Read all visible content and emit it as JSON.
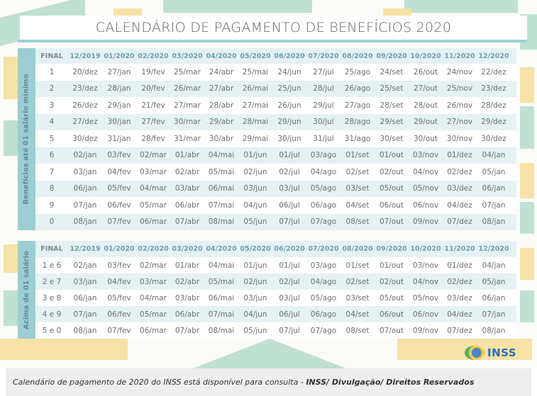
{
  "title": "CALENDÁRIO DE PAGAMENTO DE BENEFÍCIOS 2020",
  "colors": {
    "teal_accent": "#9ccdd4",
    "header_text": "#6aa3ab",
    "row_alt": "#e6f1f3",
    "green_shape": "#bfe0d2",
    "yellow_shape": "#f6e2a6",
    "logo_blue": "#2f6db3"
  },
  "columns": [
    "FINAL",
    "12/2019",
    "01/2020",
    "02/2020",
    "03/2020",
    "04/2020",
    "05/2020",
    "06/2020",
    "07/2020",
    "08/2020",
    "09/2020",
    "10/2020",
    "11/2020",
    "12/2020"
  ],
  "table_minimum": {
    "side_label": "Benefícios até 01 salário mínimo",
    "rows": [
      [
        "1",
        "20/dez",
        "27/jan",
        "19/fev",
        "25/mar",
        "24/abr",
        "25/mai",
        "24/jun",
        "27/jul",
        "25/ago",
        "24/set",
        "26/out",
        "24/nov",
        "22/dez"
      ],
      [
        "2",
        "23/dez",
        "28/jan",
        "20/fev",
        "26/mar",
        "27/abr",
        "26/mai",
        "25/jun",
        "28/jul",
        "26/ago",
        "25/set",
        "27/out",
        "25/nov",
        "23/dez"
      ],
      [
        "3",
        "26/dez",
        "29/jan",
        "21/fev",
        "27/mar",
        "28/abr",
        "27/mai",
        "26/jun",
        "29/jul",
        "27/ago",
        "28/set",
        "28/out",
        "26/nov",
        "28/dez"
      ],
      [
        "4",
        "27/dez",
        "30/jan",
        "27/fev",
        "30/mar",
        "29/abr",
        "28/mai",
        "29/jun",
        "30/jul",
        "28/ago",
        "29/set",
        "29/out",
        "27/nov",
        "29/dez"
      ],
      [
        "5",
        "30/dez",
        "31/jan",
        "28/fev",
        "31/mar",
        "30/abr",
        "29/mai",
        "30/jun",
        "31/jul",
        "31/ago",
        "30/set",
        "30/out",
        "30/nov",
        "30/dez"
      ],
      [
        "6",
        "02/jan",
        "03/fev",
        "02/mar",
        "01/abr",
        "04/mai",
        "01/jun",
        "01/jul",
        "03/ago",
        "01/set",
        "01/out",
        "03/nov",
        "01/dez",
        "04/jan"
      ],
      [
        "7",
        "03/jan",
        "04/fev",
        "03/mar",
        "02/abr",
        "05/mai",
        "02/jun",
        "02/jul",
        "04/ago",
        "02/set",
        "02/out",
        "04/nov",
        "02/dez",
        "05/jan"
      ],
      [
        "8",
        "06/jan",
        "05/fev",
        "04/mar",
        "03/abr",
        "06/mai",
        "03/jun",
        "03/jul",
        "05/ago",
        "03/set",
        "05/out",
        "05/nov",
        "03/dez",
        "06/jan"
      ],
      [
        "9",
        "07/jan",
        "06/fev",
        "05/mar",
        "06/abr",
        "07/mai",
        "04/jun",
        "06/jul",
        "06/ago",
        "04/set",
        "06/out",
        "06/nov",
        "04/dez",
        "07/jan"
      ],
      [
        "0",
        "08/jan",
        "07/fev",
        "06/mar",
        "07/abr",
        "08/mai",
        "05/jun",
        "07/jul",
        "07/ago",
        "08/set",
        "07/out",
        "09/nov",
        "07/dez",
        "08/jan"
      ]
    ]
  },
  "table_above": {
    "side_label": "Acima de 01 salário",
    "rows": [
      [
        "1 e 6",
        "02/jan",
        "03/fev",
        "02/mar",
        "01/abr",
        "04/mai",
        "01/jun",
        "01/jul",
        "03/ago",
        "01/set",
        "01/out",
        "03/nov",
        "01/dez",
        "04/jan"
      ],
      [
        "2 e 7",
        "03/jan",
        "04/fev",
        "03/mar",
        "02/abr",
        "05/mai",
        "02/jun",
        "02/jul",
        "04/ago",
        "02/set",
        "02/out",
        "04/nov",
        "02/dez",
        "05/jan"
      ],
      [
        "3 e 8",
        "06/jan",
        "05/fev",
        "04/mar",
        "03/abr",
        "06/mai",
        "03/jun",
        "03/jul",
        "05/ago",
        "03/set",
        "05/out",
        "05/nov",
        "03/dez",
        "06/jan"
      ],
      [
        "4 e 9",
        "07/jan",
        "06/fev",
        "05/mar",
        "06/abr",
        "07/mai",
        "04/jun",
        "06/jul",
        "06/ago",
        "04/set",
        "06/out",
        "06/nov",
        "04/dez",
        "07/jan"
      ],
      [
        "5 e 0",
        "08/jan",
        "07/fev",
        "06/mar",
        "07/abr",
        "08/mai",
        "05/jun",
        "07/jul",
        "07/ago",
        "08/set",
        "07/out",
        "09/nov",
        "07/dez",
        "08/jan"
      ]
    ]
  },
  "logo": {
    "icon": "inss-globe-icon",
    "text": "INSS"
  },
  "caption": {
    "text": "Calendário de pagamento de 2020 do INSS está disponível para consulta - ",
    "credit": "INSS/ Divulgação/ Direitos Reservados"
  }
}
